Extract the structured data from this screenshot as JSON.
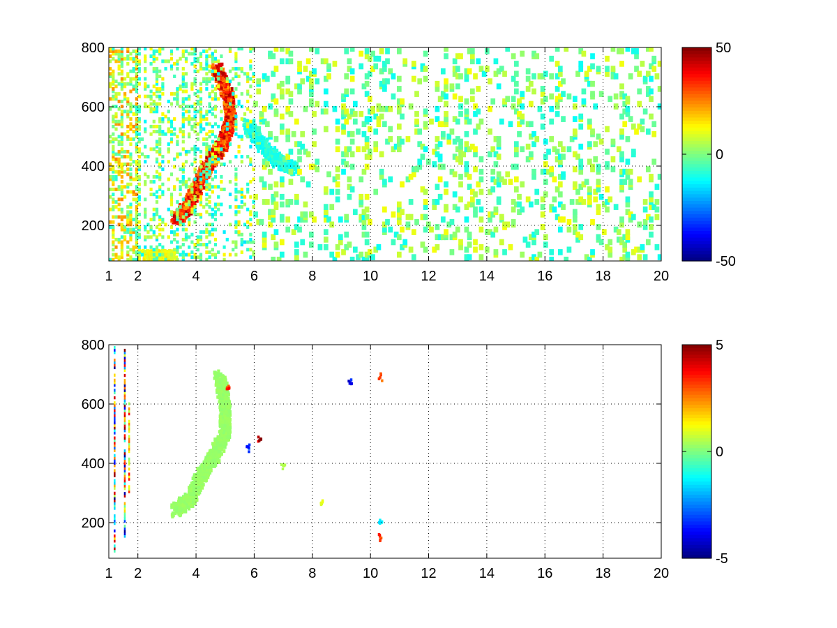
{
  "chart_data": [
    {
      "type": "heatmap",
      "title": "",
      "xlabel": "",
      "ylabel": "",
      "xlim": [
        1,
        20
      ],
      "ylim": [
        80,
        800
      ],
      "xticks": [
        "1",
        "2",
        "4",
        "6",
        "8",
        "10",
        "12",
        "14",
        "16",
        "18",
        "20"
      ],
      "yticks": [
        "200",
        "400",
        "600",
        "800"
      ],
      "grid": true,
      "colormap": "jet",
      "colorbar": {
        "range": [
          -50,
          50
        ],
        "ticks": [
          "50",
          "0",
          "-50"
        ]
      },
      "features": [
        {
          "kind": "ridge",
          "points": [
            [
              3.3,
              220
            ],
            [
              3.7,
              260
            ],
            [
              4.0,
              320
            ],
            [
              4.4,
              400
            ],
            [
              4.9,
              470
            ],
            [
              5.2,
              560
            ],
            [
              5.1,
              640
            ],
            [
              4.7,
              730
            ]
          ],
          "value": 42
        },
        {
          "kind": "ridge",
          "points": [
            [
              5.8,
              540
            ],
            [
              6.3,
              470
            ],
            [
              6.9,
              410
            ],
            [
              7.4,
              390
            ]
          ],
          "value": -12
        },
        {
          "kind": "ridge",
          "points": [
            [
              2.3,
              95
            ],
            [
              2.7,
              95
            ],
            [
              3.2,
              95
            ]
          ],
          "value": 15
        },
        {
          "kind": "column_band",
          "x": [
            1.0,
            2.0
          ],
          "density": 0.55,
          "value_range": [
            -10,
            25
          ]
        },
        {
          "kind": "column_band",
          "x": [
            2.0,
            6.0
          ],
          "density": 0.3,
          "value_range": [
            -15,
            15
          ]
        },
        {
          "kind": "column_band",
          "x": [
            6.0,
            20.0
          ],
          "density": 0.09,
          "value_range": [
            -12,
            12
          ]
        }
      ]
    },
    {
      "type": "heatmap",
      "title": "",
      "xlabel": "",
      "ylabel": "",
      "xlim": [
        1,
        20
      ],
      "ylim": [
        80,
        800
      ],
      "xticks": [
        "1",
        "2",
        "4",
        "6",
        "8",
        "10",
        "12",
        "14",
        "16",
        "18",
        "20"
      ],
      "yticks": [
        "200",
        "400",
        "600",
        "800"
      ],
      "grid": true,
      "colormap": "jet",
      "colorbar": {
        "range": [
          -5,
          5
        ],
        "ticks": [
          "5",
          "0",
          "-5"
        ]
      },
      "features": [
        {
          "kind": "ridge",
          "points": [
            [
              3.3,
              240
            ],
            [
              3.8,
              280
            ],
            [
              4.2,
              360
            ],
            [
              4.6,
              420
            ],
            [
              5.0,
              500
            ],
            [
              5.0,
              600
            ],
            [
              4.8,
              700
            ]
          ],
          "value": 0.3
        },
        {
          "kind": "column_line",
          "x": 1.2,
          "y": [
            100,
            790
          ],
          "value_range": [
            -5,
            5
          ]
        },
        {
          "kind": "column_line",
          "x": 1.55,
          "y": [
            150,
            780
          ],
          "value_range": [
            -5,
            5
          ]
        },
        {
          "kind": "column_line",
          "x": 1.7,
          "y": [
            300,
            600
          ],
          "value_range": [
            0,
            4
          ]
        },
        {
          "kind": "spot",
          "x": 6.2,
          "y": 480,
          "value": 4.5
        },
        {
          "kind": "spot",
          "x": 5.1,
          "y": 650,
          "value": 3.5
        },
        {
          "kind": "spot",
          "x": 5.8,
          "y": 450,
          "value": -3.5
        },
        {
          "kind": "spot",
          "x": 9.3,
          "y": 680,
          "value": -4
        },
        {
          "kind": "spot",
          "x": 10.35,
          "y": 690,
          "value": 3
        },
        {
          "kind": "spot",
          "x": 10.35,
          "y": 200,
          "value": -1.5
        },
        {
          "kind": "spot",
          "x": 10.35,
          "y": 150,
          "value": 3.5
        },
        {
          "kind": "spot",
          "x": 8.3,
          "y": 270,
          "value": 1
        },
        {
          "kind": "spot",
          "x": 7.0,
          "y": 390,
          "value": 0.5
        }
      ]
    }
  ]
}
